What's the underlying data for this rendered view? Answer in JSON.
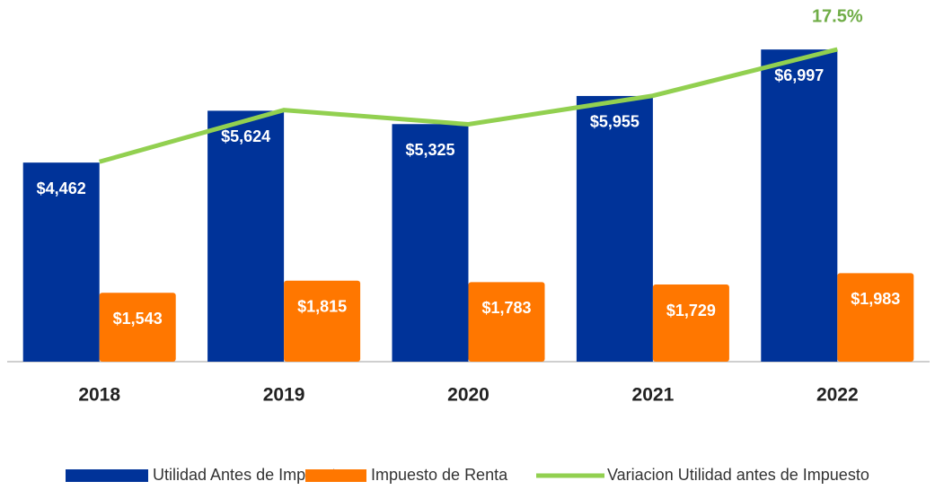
{
  "chart_data": {
    "type": "bar",
    "categories": [
      "2018",
      "2019",
      "2020",
      "2021",
      "2022"
    ],
    "series": [
      {
        "name": "Utilidad Antes de Impuesto",
        "color": "#003399",
        "values": [
          4462,
          5624,
          5325,
          5955,
          6997
        ],
        "value_labels": [
          "$4,462",
          "$5,624",
          "$5,325",
          "$5,955",
          "$6,997"
        ]
      },
      {
        "name": "Impuesto de Renta",
        "color": "#ff7700",
        "values": [
          1543,
          1815,
          1783,
          1729,
          1983
        ],
        "value_labels": [
          "$1,543",
          "$1,815",
          "$1,783",
          "$1,729",
          "$1,983"
        ]
      },
      {
        "name": "Variacion Utilidad antes de Impuesto",
        "type": "line",
        "axis": "y2",
        "color": "#92d050",
        "values": [
          11.2,
          14.1,
          13.3,
          14.9,
          17.5
        ],
        "value_labels": [
          null,
          null,
          null,
          null,
          "17.5%"
        ]
      }
    ],
    "ylim": [
      0,
      7000
    ],
    "y2lim": [
      0,
      17.5
    ],
    "grid": false,
    "legend": "bottom"
  }
}
